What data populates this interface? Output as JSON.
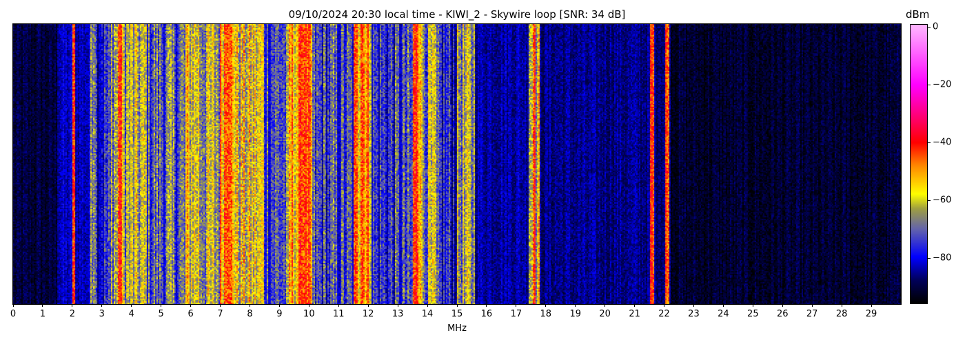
{
  "chart_data": {
    "type": "heatmap",
    "title": "09/10/2024 20:30 local time - KIWI_2 - Skywire loop [SNR: 34 dB]",
    "xlabel": "MHz",
    "ylabel": "",
    "xlim": [
      0,
      30
    ],
    "xticks": [
      0,
      1,
      2,
      3,
      4,
      5,
      6,
      7,
      8,
      9,
      10,
      11,
      12,
      13,
      14,
      15,
      16,
      17,
      18,
      19,
      20,
      21,
      22,
      23,
      24,
      25,
      26,
      27,
      28,
      29
    ],
    "colorbar": {
      "label": "dBm",
      "range": [
        -96,
        1
      ],
      "ticks": [
        0,
        -20,
        -40,
        -60,
        -80
      ],
      "tick_labels": [
        "0",
        "−20",
        "−40",
        "−60",
        "−80"
      ],
      "colormap": [
        {
          "value": -96,
          "color": "#000000"
        },
        {
          "value": -88,
          "color": "#00005a"
        },
        {
          "value": -80,
          "color": "#0000ff"
        },
        {
          "value": -70,
          "color": "#6666aa"
        },
        {
          "value": -63,
          "color": "#a0a040"
        },
        {
          "value": -58,
          "color": "#ffff00"
        },
        {
          "value": -48,
          "color": "#ff8800"
        },
        {
          "value": -40,
          "color": "#ff0000"
        },
        {
          "value": -20,
          "color": "#ff00ff"
        },
        {
          "value": 0,
          "color": "#ffb0ff"
        }
      ]
    },
    "frequency_profile_dbm": [
      {
        "from": 0.0,
        "to": 1.5,
        "level": -91
      },
      {
        "from": 1.5,
        "to": 2.6,
        "level": -83
      },
      {
        "from": 2.6,
        "to": 2.8,
        "level": -60
      },
      {
        "from": 2.8,
        "to": 3.3,
        "level": -77
      },
      {
        "from": 3.3,
        "to": 4.5,
        "level": -64
      },
      {
        "from": 4.5,
        "to": 5.8,
        "level": -71
      },
      {
        "from": 5.8,
        "to": 6.3,
        "level": -59
      },
      {
        "from": 6.3,
        "to": 7.0,
        "level": -64
      },
      {
        "from": 7.0,
        "to": 7.5,
        "level": -50
      },
      {
        "from": 7.5,
        "to": 8.5,
        "level": -60
      },
      {
        "from": 8.5,
        "to": 9.3,
        "level": -72
      },
      {
        "from": 9.3,
        "to": 10.1,
        "level": -52
      },
      {
        "from": 10.1,
        "to": 11.5,
        "level": -75
      },
      {
        "from": 11.5,
        "to": 12.1,
        "level": -51
      },
      {
        "from": 12.1,
        "to": 13.5,
        "level": -76
      },
      {
        "from": 13.5,
        "to": 13.8,
        "level": -44
      },
      {
        "from": 13.8,
        "to": 14.3,
        "level": -66
      },
      {
        "from": 14.3,
        "to": 15.0,
        "level": -78
      },
      {
        "from": 15.0,
        "to": 15.6,
        "level": -66
      },
      {
        "from": 15.6,
        "to": 17.4,
        "level": -84
      },
      {
        "from": 17.4,
        "to": 17.8,
        "level": -60
      },
      {
        "from": 17.8,
        "to": 22.2,
        "level": -86
      },
      {
        "from": 22.2,
        "to": 30.0,
        "level": -92
      }
    ],
    "strong_carriers_mhz": [
      2.05,
      3.6,
      7.2,
      9.8,
      11.8,
      13.65,
      17.6,
      21.6,
      22.1
    ]
  }
}
